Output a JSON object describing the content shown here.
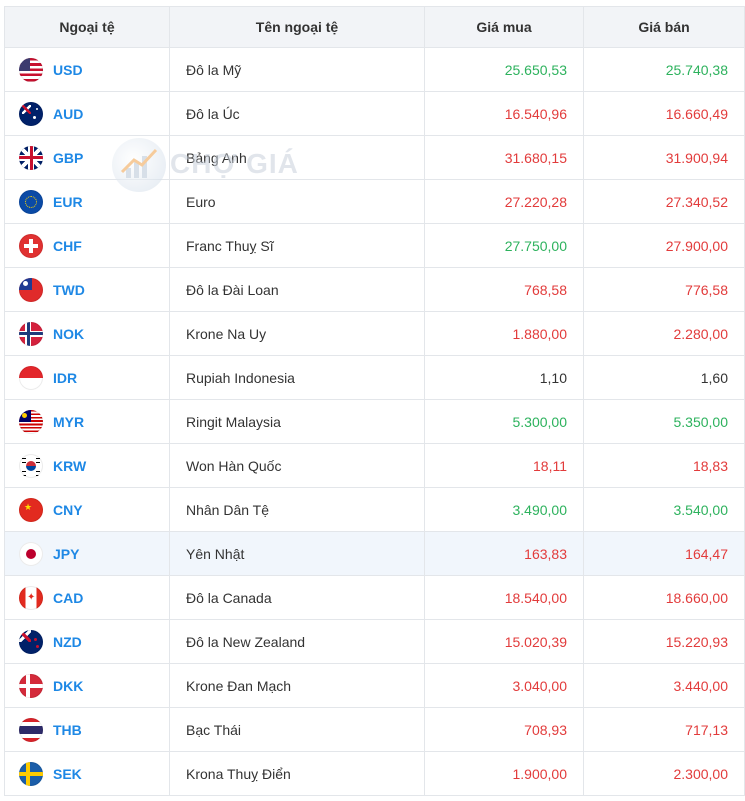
{
  "table": {
    "headers": {
      "code": "Ngoại tệ",
      "name": "Tên ngoại tệ",
      "buy": "Giá mua",
      "sell": "Giá bán"
    },
    "rows": [
      {
        "code": "USD",
        "name": "Đô la Mỹ",
        "buy": "25.650,53",
        "sell": "25.740,38",
        "buy_trend": "up",
        "sell_trend": "up",
        "flag": "us-flag-icon"
      },
      {
        "code": "AUD",
        "name": "Đô la Úc",
        "buy": "16.540,96",
        "sell": "16.660,49",
        "buy_trend": "down",
        "sell_trend": "down",
        "flag": "au-flag-icon"
      },
      {
        "code": "GBP",
        "name": "Bảng Anh",
        "buy": "31.680,15",
        "sell": "31.900,94",
        "buy_trend": "down",
        "sell_trend": "down",
        "flag": "gb-flag-icon"
      },
      {
        "code": "EUR",
        "name": "Euro",
        "buy": "27.220,28",
        "sell": "27.340,52",
        "buy_trend": "down",
        "sell_trend": "down",
        "flag": "eu-flag-icon"
      },
      {
        "code": "CHF",
        "name": "Franc Thuỵ Sĩ",
        "buy": "27.750,00",
        "sell": "27.900,00",
        "buy_trend": "up",
        "sell_trend": "down",
        "flag": "ch-flag-icon"
      },
      {
        "code": "TWD",
        "name": "Đô la Đài Loan",
        "buy": "768,58",
        "sell": "776,58",
        "buy_trend": "down",
        "sell_trend": "down",
        "flag": "tw-flag-icon"
      },
      {
        "code": "NOK",
        "name": "Krone Na Uy",
        "buy": "1.880,00",
        "sell": "2.280,00",
        "buy_trend": "down",
        "sell_trend": "down",
        "flag": "no-flag-icon"
      },
      {
        "code": "IDR",
        "name": "Rupiah Indonesia",
        "buy": "1,10",
        "sell": "1,60",
        "buy_trend": "flat",
        "sell_trend": "flat",
        "flag": "id-flag-icon"
      },
      {
        "code": "MYR",
        "name": "Ringit Malaysia",
        "buy": "5.300,00",
        "sell": "5.350,00",
        "buy_trend": "up",
        "sell_trend": "up",
        "flag": "my-flag-icon"
      },
      {
        "code": "KRW",
        "name": "Won Hàn Quốc",
        "buy": "18,11",
        "sell": "18,83",
        "buy_trend": "down",
        "sell_trend": "down",
        "flag": "kr-flag-icon"
      },
      {
        "code": "CNY",
        "name": "Nhân Dân Tệ",
        "buy": "3.490,00",
        "sell": "3.540,00",
        "buy_trend": "up",
        "sell_trend": "up",
        "flag": "cn-flag-icon"
      },
      {
        "code": "JPY",
        "name": "Yên Nhật",
        "buy": "163,83",
        "sell": "164,47",
        "buy_trend": "down",
        "sell_trend": "down",
        "flag": "jp-flag-icon",
        "highlighted": true
      },
      {
        "code": "CAD",
        "name": "Đô la Canada",
        "buy": "18.540,00",
        "sell": "18.660,00",
        "buy_trend": "down",
        "sell_trend": "down",
        "flag": "ca-flag-icon"
      },
      {
        "code": "NZD",
        "name": "Đô la New Zealand",
        "buy": "15.020,39",
        "sell": "15.220,93",
        "buy_trend": "down",
        "sell_trend": "down",
        "flag": "nz-flag-icon"
      },
      {
        "code": "DKK",
        "name": "Krone Đan Mạch",
        "buy": "3.040,00",
        "sell": "3.440,00",
        "buy_trend": "down",
        "sell_trend": "down",
        "flag": "dk-flag-icon"
      },
      {
        "code": "THB",
        "name": "Bạc Thái",
        "buy": "708,93",
        "sell": "717,13",
        "buy_trend": "down",
        "sell_trend": "down",
        "flag": "th-flag-icon"
      },
      {
        "code": "SEK",
        "name": "Krona Thuỵ Điển",
        "buy": "1.900,00",
        "sell": "2.300,00",
        "buy_trend": "down",
        "sell_trend": "down",
        "flag": "se-flag-icon"
      }
    ]
  },
  "watermark": {
    "text": "CHỢ GIÁ"
  },
  "colors": {
    "up": "#2db25d",
    "down": "#e23b3b",
    "flat": "#333333",
    "code": "#1e88e5",
    "header_bg": "#f2f4f7"
  }
}
